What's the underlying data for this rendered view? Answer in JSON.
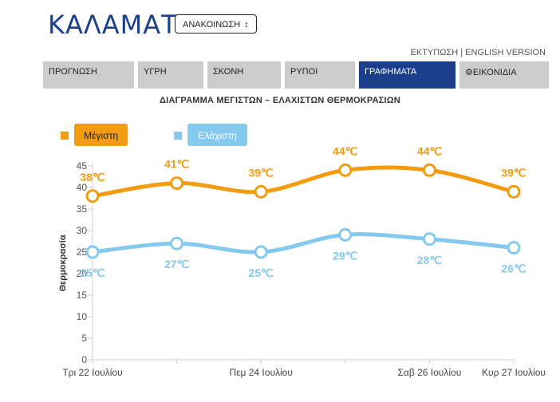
{
  "header": {
    "city": "ΚΑΛΑΜΑΤΑ",
    "announce_label": "ΑΝΑΚΟΙΝΩΣΗ",
    "announce_icon": "sort-arrow-icon"
  },
  "toplinks": {
    "print": "ΕΚΤΥΠΩΣΗ",
    "separator": "|",
    "english": "ENGLISH VERSION"
  },
  "tabs": [
    {
      "label": "ΠΡΟΓΝΩΣΗ",
      "active": false
    },
    {
      "label": "ΥΓΡΗ",
      "active": false
    },
    {
      "label": "ΣΚΟΝΗ",
      "active": false
    },
    {
      "label": "ΡΥΠΟΙ",
      "active": false
    },
    {
      "label": "ΓΡΑΦΗΜΑΤΑ",
      "active": true
    },
    {
      "label": "ΕΙΚΟΝΙΔΙΑ",
      "active": false,
      "icon": "gear-icon"
    }
  ],
  "colors": {
    "brand": "#1b3f8b",
    "tab_bg": "#cccccc",
    "max": "#f39c12",
    "min": "#85c9ee"
  },
  "chart_data": {
    "type": "line",
    "title": "ΔΙΑΓΡΑΜΜΑ ΜΕΓΙΣΤΩΝ – ΕΛΑΧΙΣΤΩΝ ΘΕΡΜΟΚΡΑΣΙΩΝ",
    "ylabel": "Θερμοκρασία",
    "ylim": [
      0,
      45
    ],
    "yticks": [
      0,
      5,
      10,
      15,
      20,
      25,
      30,
      35,
      40,
      45
    ],
    "x": [
      0,
      1,
      2,
      3,
      4,
      5
    ],
    "xtick_labels": [
      {
        "x": 0,
        "label": "Τρι 22 Ιουλίου"
      },
      {
        "x": 2,
        "label": "Πεμ 24 Ιουλίου"
      },
      {
        "x": 4,
        "label": "Σαβ 26 Ιουλίου"
      },
      {
        "x": 5,
        "label": "Κυρ 27 Ιουλίου"
      }
    ],
    "legend_position": "top-left",
    "series": [
      {
        "name": "Μέγιστη",
        "color": "#f39c12",
        "values": [
          38,
          41,
          39,
          44,
          44,
          39
        ],
        "labels": [
          "38℃",
          "41℃",
          "39℃",
          "44℃",
          "44℃",
          "39℃"
        ],
        "label_position": "above"
      },
      {
        "name": "Ελάχιστη",
        "color": "#85c9ee",
        "values": [
          25,
          27,
          25,
          29,
          28,
          26
        ],
        "labels": [
          "25℃",
          "27℃",
          "25℃",
          "29℃",
          "28℃",
          "26℃"
        ],
        "label_position": "below"
      }
    ]
  }
}
